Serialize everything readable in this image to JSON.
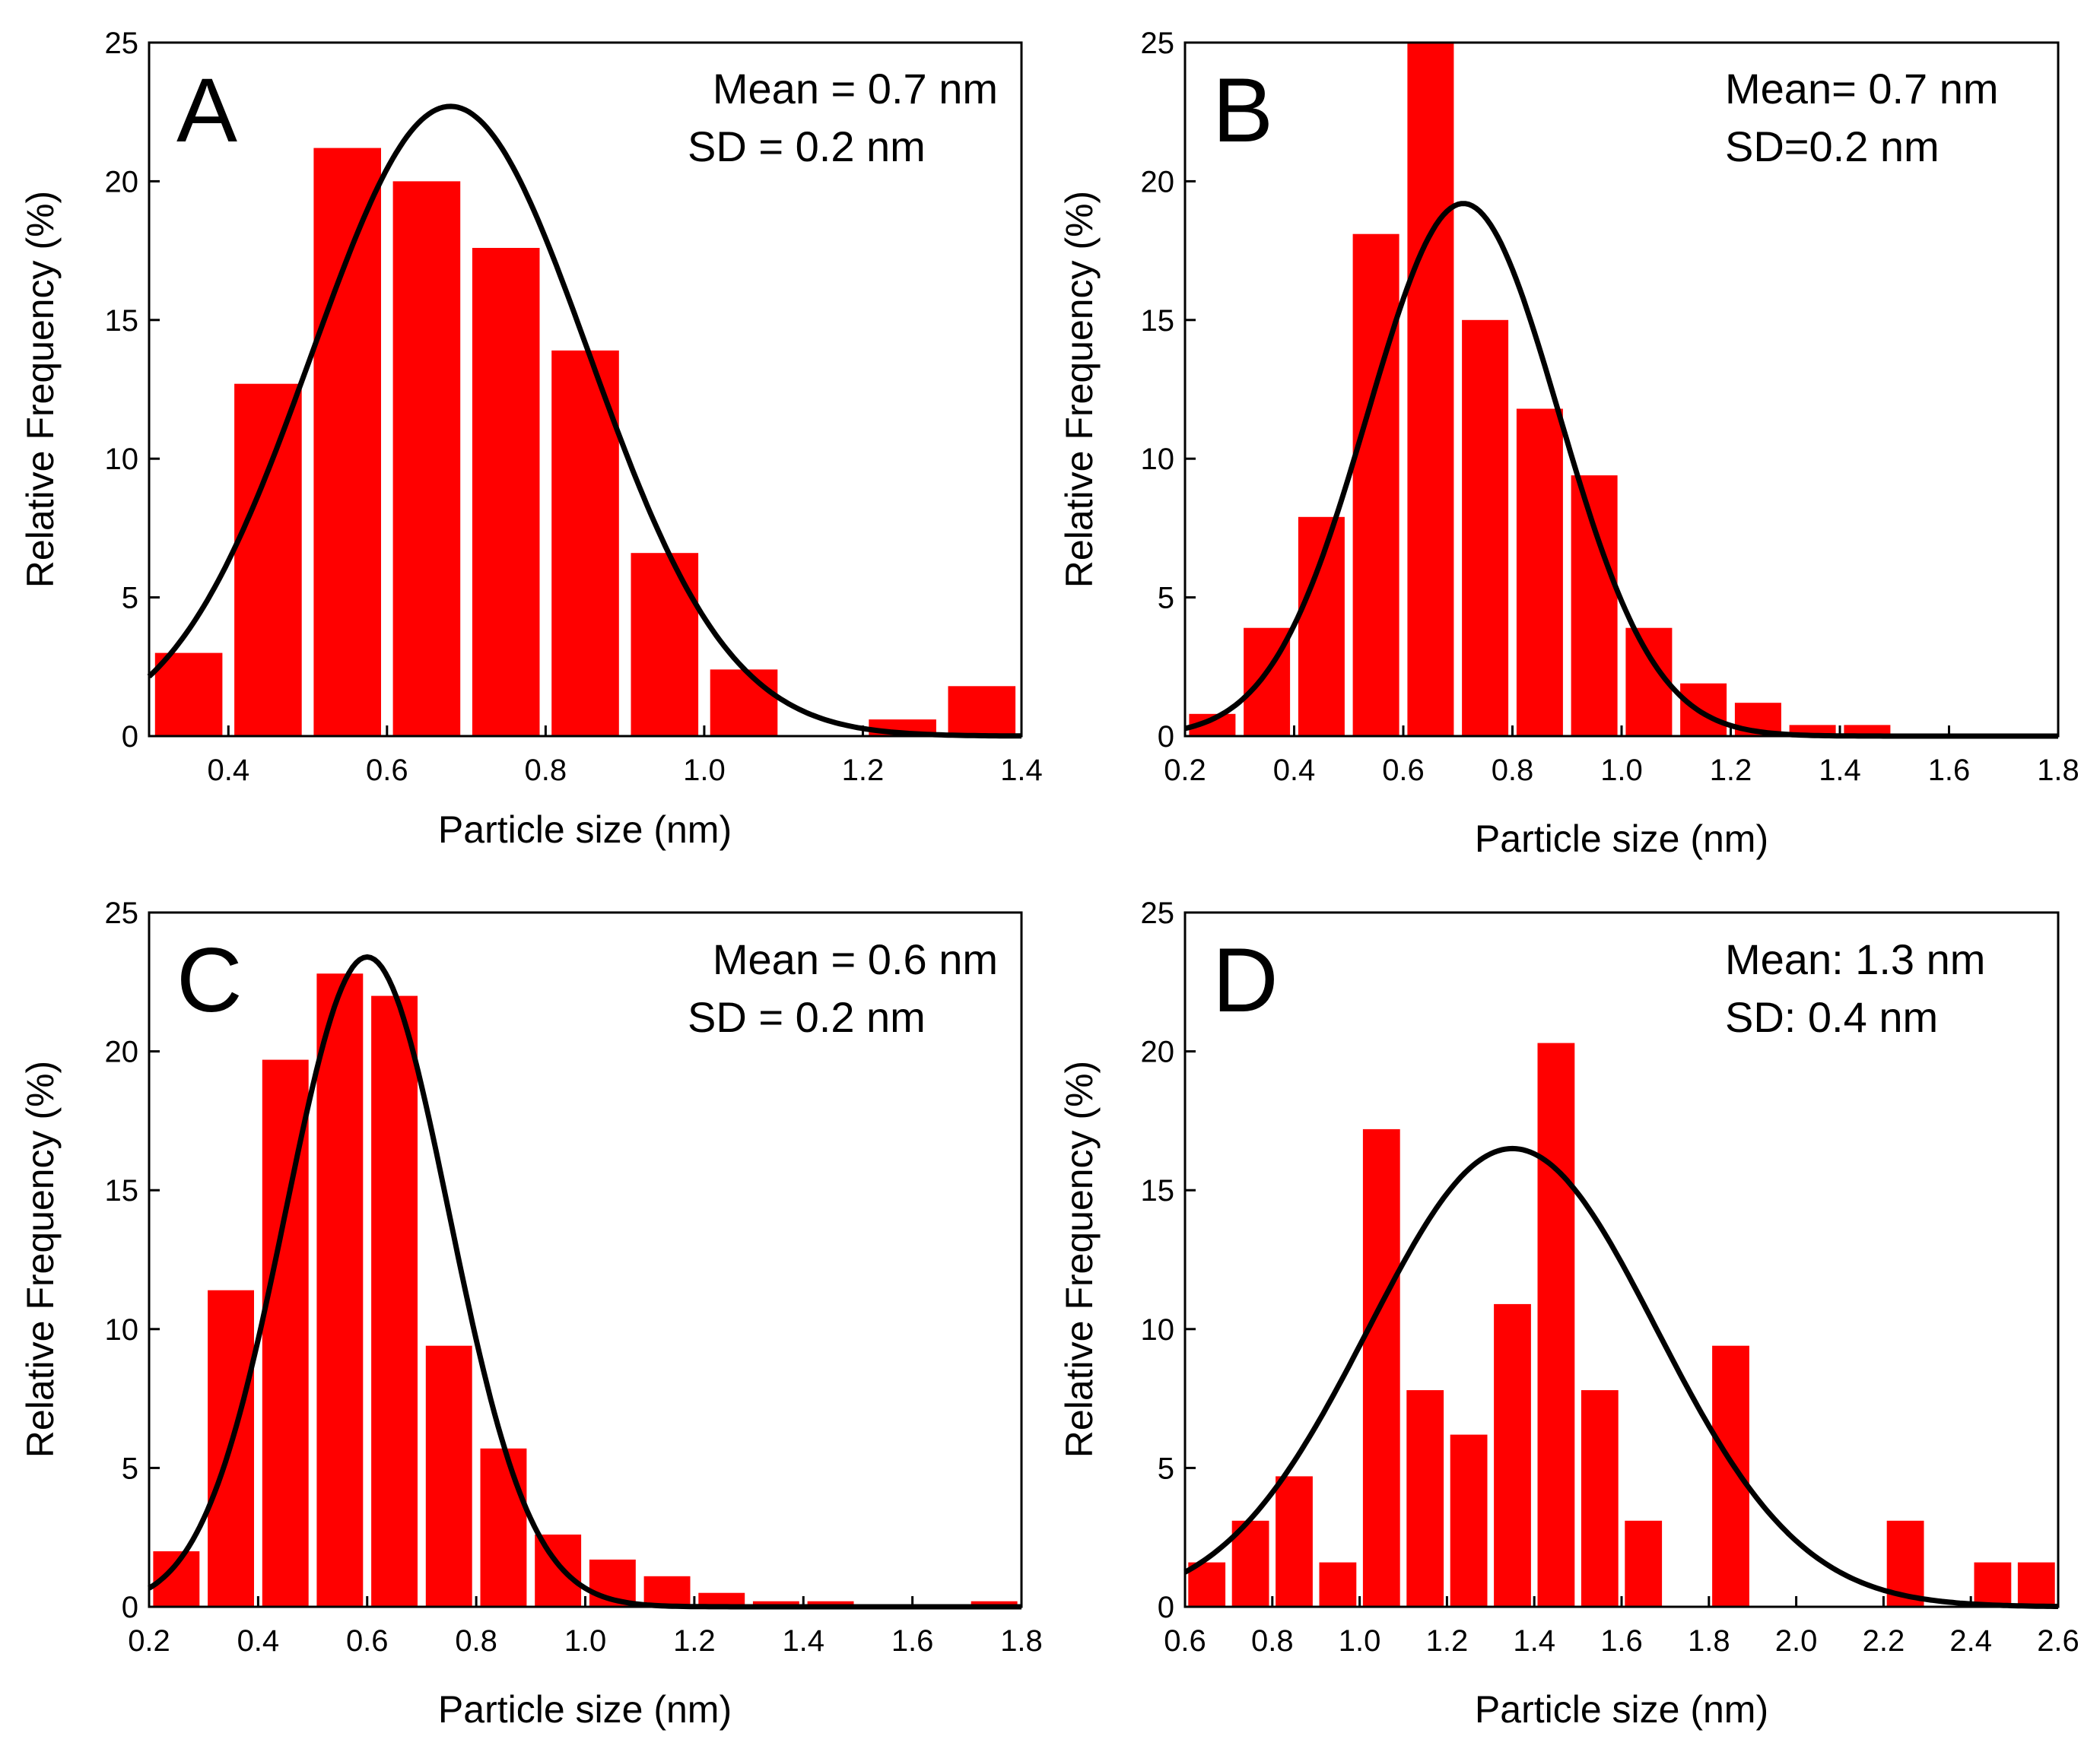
{
  "chart_data": [
    {
      "type": "bar",
      "panel": "A",
      "annotation": [
        "Mean = 0.7 nm",
        "SD = 0.2 nm"
      ],
      "xlabel": "Particle size (nm)",
      "ylabel": "Relative Frequency (%)",
      "xlim": [
        0.3,
        1.4
      ],
      "ylim": [
        0,
        25
      ],
      "xticks": [
        0.4,
        0.6,
        0.8,
        1.0,
        1.2,
        1.4
      ],
      "xtick_labels": [
        "0.4",
        "0.6",
        "0.8",
        "1.0",
        "1.2",
        "1.4"
      ],
      "yticks": [
        0,
        5,
        10,
        15,
        20,
        25
      ],
      "ytick_labels": [
        "0",
        "5",
        "10",
        "15",
        "20",
        "25"
      ],
      "bin_width": 0.1,
      "bar_fraction": 0.85,
      "bars": [
        {
          "x": 0.35,
          "value": 3.0
        },
        {
          "x": 0.45,
          "value": 12.7
        },
        {
          "x": 0.55,
          "value": 21.2
        },
        {
          "x": 0.65,
          "value": 20.0
        },
        {
          "x": 0.75,
          "value": 17.6
        },
        {
          "x": 0.85,
          "value": 13.9
        },
        {
          "x": 0.95,
          "value": 6.6
        },
        {
          "x": 1.05,
          "value": 2.4
        },
        {
          "x": 1.25,
          "value": 0.6
        },
        {
          "x": 1.35,
          "value": 1.8
        }
      ],
      "fit": {
        "mean": 0.68,
        "sd": 0.175,
        "amplitude": 22.7
      }
    },
    {
      "type": "bar",
      "panel": "B",
      "annotation": [
        "Mean= 0.7 nm",
        "SD=0.2 nm"
      ],
      "xlabel": "Particle size (nm)",
      "ylabel": "Relative Frequency (%)",
      "xlim": [
        0.2,
        1.8
      ],
      "ylim": [
        0,
        25
      ],
      "xticks": [
        0.2,
        0.4,
        0.6,
        0.8,
        1.0,
        1.2,
        1.4,
        1.6,
        1.8
      ],
      "xtick_labels": [
        "0.2",
        "0.4",
        "0.6",
        "0.8",
        "1.0",
        "1.2",
        "1.4",
        "1.6",
        "1.8"
      ],
      "yticks": [
        0,
        5,
        10,
        15,
        20,
        25
      ],
      "ytick_labels": [
        "0",
        "5",
        "10",
        "15",
        "20",
        "25"
      ],
      "bin_width": 0.1,
      "bar_fraction": 0.85,
      "bars": [
        {
          "x": 0.25,
          "value": 0.8
        },
        {
          "x": 0.35,
          "value": 3.9
        },
        {
          "x": 0.45,
          "value": 7.9
        },
        {
          "x": 0.55,
          "value": 18.1
        },
        {
          "x": 0.65,
          "value": 25.0
        },
        {
          "x": 0.75,
          "value": 15.0
        },
        {
          "x": 0.85,
          "value": 11.8
        },
        {
          "x": 0.95,
          "value": 9.4
        },
        {
          "x": 1.05,
          "value": 3.9
        },
        {
          "x": 1.15,
          "value": 1.9
        },
        {
          "x": 1.25,
          "value": 1.2
        },
        {
          "x": 1.35,
          "value": 0.4
        },
        {
          "x": 1.45,
          "value": 0.4
        }
      ],
      "fit": {
        "mean": 0.71,
        "sd": 0.175,
        "amplitude": 19.2
      }
    },
    {
      "type": "bar",
      "panel": "C",
      "annotation": [
        "Mean = 0.6 nm",
        "SD = 0.2 nm"
      ],
      "xlabel": "Particle size (nm)",
      "ylabel": "Relative Frequency (%)",
      "xlim": [
        0.2,
        1.8
      ],
      "ylim": [
        0,
        25
      ],
      "xticks": [
        0.2,
        0.4,
        0.6,
        0.8,
        1.0,
        1.2,
        1.4,
        1.6,
        1.8
      ],
      "xtick_labels": [
        "0.2",
        "0.4",
        "0.6",
        "0.8",
        "1.0",
        "1.2",
        "1.4",
        "1.6",
        "1.8"
      ],
      "yticks": [
        0,
        5,
        10,
        15,
        20,
        25
      ],
      "ytick_labels": [
        "0",
        "5",
        "10",
        "15",
        "20",
        "25"
      ],
      "bin_width": 0.1,
      "bar_fraction": 0.85,
      "bars": [
        {
          "x": 0.25,
          "value": 2.0
        },
        {
          "x": 0.35,
          "value": 11.4
        },
        {
          "x": 0.45,
          "value": 19.7
        },
        {
          "x": 0.55,
          "value": 22.8
        },
        {
          "x": 0.65,
          "value": 22.0
        },
        {
          "x": 0.75,
          "value": 9.4
        },
        {
          "x": 0.85,
          "value": 5.7
        },
        {
          "x": 0.95,
          "value": 2.6
        },
        {
          "x": 1.05,
          "value": 1.7
        },
        {
          "x": 1.15,
          "value": 1.1
        },
        {
          "x": 1.25,
          "value": 0.5
        },
        {
          "x": 1.35,
          "value": 0.2
        },
        {
          "x": 1.45,
          "value": 0.2
        },
        {
          "x": 1.75,
          "value": 0.2
        }
      ],
      "fit": {
        "mean": 0.6,
        "sd": 0.15,
        "amplitude": 23.4
      }
    },
    {
      "type": "bar",
      "panel": "D",
      "annotation": [
        "Mean: 1.3 nm",
        "SD: 0.4 nm"
      ],
      "xlabel": "Particle size (nm)",
      "ylabel": "Relative Frequency (%)",
      "xlim": [
        0.6,
        2.6
      ],
      "ylim": [
        0,
        25
      ],
      "xticks": [
        0.6,
        0.8,
        1.0,
        1.2,
        1.4,
        1.6,
        1.8,
        2.0,
        2.2,
        2.4,
        2.6
      ],
      "xtick_labels": [
        "0.6",
        "0.8",
        "1.0",
        "1.2",
        "1.4",
        "1.6",
        "1.8",
        "2.0",
        "2.2",
        "2.4",
        "2.6"
      ],
      "yticks": [
        0,
        5,
        10,
        15,
        20,
        25
      ],
      "ytick_labels": [
        "0",
        "5",
        "10",
        "15",
        "20",
        "25"
      ],
      "bin_width": 0.1,
      "bar_fraction": 0.85,
      "bars": [
        {
          "x": 0.65,
          "value": 1.6
        },
        {
          "x": 0.75,
          "value": 3.1
        },
        {
          "x": 0.85,
          "value": 4.7
        },
        {
          "x": 0.95,
          "value": 1.6
        },
        {
          "x": 1.05,
          "value": 17.2
        },
        {
          "x": 1.15,
          "value": 7.8
        },
        {
          "x": 1.25,
          "value": 6.2
        },
        {
          "x": 1.35,
          "value": 10.9
        },
        {
          "x": 1.45,
          "value": 20.3
        },
        {
          "x": 1.55,
          "value": 7.8
        },
        {
          "x": 1.65,
          "value": 3.1
        },
        {
          "x": 1.85,
          "value": 9.4
        },
        {
          "x": 2.25,
          "value": 3.1
        },
        {
          "x": 2.45,
          "value": 1.6
        },
        {
          "x": 2.55,
          "value": 1.6
        }
      ],
      "fit": {
        "mean": 1.35,
        "sd": 0.33,
        "amplitude": 16.5
      }
    }
  ],
  "colors": {
    "bar": "#ff0000",
    "fit_line": "#000000",
    "axis": "#000000"
  }
}
